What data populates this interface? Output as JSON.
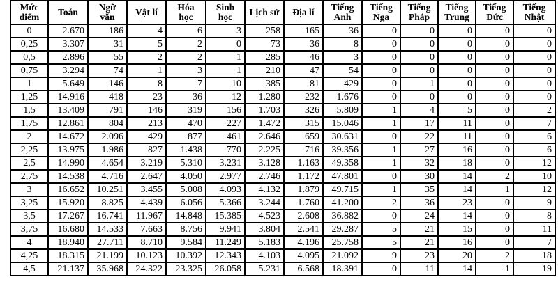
{
  "headers": [
    [
      "Mức",
      "điểm"
    ],
    [
      "Toán"
    ],
    [
      "Ngữ",
      "văn"
    ],
    [
      "Vật lí"
    ],
    [
      "Hóa",
      "học"
    ],
    [
      "Sinh",
      "học"
    ],
    [
      "Lịch sử"
    ],
    [
      "Địa lí"
    ],
    [
      "Tiếng",
      "Anh"
    ],
    [
      "Tiếng",
      "Nga"
    ],
    [
      "Tiếng",
      "Pháp"
    ],
    [
      "Tiếng",
      "Trung"
    ],
    [
      "Tiếng",
      "Đức"
    ],
    [
      "Tiếng",
      "Nhật"
    ]
  ],
  "rows": [
    [
      "0",
      "2.670",
      "186",
      "4",
      "6",
      "3",
      "258",
      "165",
      "36",
      "0",
      "0",
      "0",
      "0",
      "0"
    ],
    [
      "0,25",
      "3.307",
      "31",
      "5",
      "2",
      "0",
      "73",
      "36",
      "8",
      "0",
      "0",
      "0",
      "0",
      "0"
    ],
    [
      "0,5",
      "2.896",
      "55",
      "2",
      "2",
      "1",
      "285",
      "46",
      "3",
      "0",
      "0",
      "0",
      "0",
      "0"
    ],
    [
      "0,75",
      "3.294",
      "74",
      "1",
      "3",
      "1",
      "210",
      "47",
      "54",
      "0",
      "0",
      "0",
      "0",
      "0"
    ],
    [
      "1",
      "5.649",
      "146",
      "8",
      "7",
      "10",
      "385",
      "81",
      "429",
      "0",
      "1",
      "0",
      "0",
      "0"
    ],
    [
      "1,25",
      "14.916",
      "418",
      "23",
      "36",
      "12",
      "1.280",
      "232",
      "1.676",
      "0",
      "0",
      "0",
      "0",
      "0"
    ],
    [
      "1,5",
      "13.409",
      "791",
      "146",
      "319",
      "156",
      "1.703",
      "326",
      "5.809",
      "1",
      "4",
      "5",
      "0",
      "2"
    ],
    [
      "1,75",
      "12.861",
      "804",
      "213",
      "470",
      "227",
      "1.472",
      "315",
      "15.046",
      "1",
      "17",
      "11",
      "0",
      "7"
    ],
    [
      "2",
      "14.672",
      "2.096",
      "429",
      "877",
      "461",
      "2.646",
      "659",
      "30.631",
      "0",
      "22",
      "11",
      "0",
      "6"
    ],
    [
      "2,25",
      "13.975",
      "1.986",
      "827",
      "1.438",
      "770",
      "2.225",
      "716",
      "39.356",
      "1",
      "27",
      "16",
      "0",
      "6"
    ],
    [
      "2,5",
      "14.990",
      "4.654",
      "3.219",
      "5.310",
      "3.231",
      "3.128",
      "1.163",
      "49.358",
      "1",
      "32",
      "18",
      "0",
      "12"
    ],
    [
      "2,75",
      "14.538",
      "4.716",
      "2.647",
      "4.050",
      "2.977",
      "2.746",
      "1.172",
      "47.801",
      "0",
      "30",
      "14",
      "2",
      "10"
    ],
    [
      "3",
      "16.652",
      "10.251",
      "3.455",
      "5.008",
      "4.093",
      "4.132",
      "1.879",
      "49.715",
      "1",
      "35",
      "14",
      "1",
      "12"
    ],
    [
      "3,25",
      "15.920",
      "8.825",
      "4.439",
      "6.056",
      "5.366",
      "3.244",
      "1.760",
      "41.200",
      "2",
      "36",
      "23",
      "0",
      "9"
    ],
    [
      "3,5",
      "17.267",
      "16.741",
      "11.967",
      "14.848",
      "15.385",
      "4.523",
      "2.608",
      "36.882",
      "0",
      "24",
      "14",
      "0",
      "8"
    ],
    [
      "3,75",
      "16.680",
      "14.533",
      "7.663",
      "8.756",
      "9.941",
      "3.804",
      "2.541",
      "29.287",
      "5",
      "21",
      "15",
      "0",
      "11"
    ],
    [
      "4",
      "18.940",
      "27.711",
      "8.710",
      "9.584",
      "11.249",
      "5.183",
      "4.196",
      "25.758",
      "5",
      "21",
      "16",
      "0",
      "7"
    ],
    [
      "4,25",
      "18.315",
      "21.199",
      "10.123",
      "10.392",
      "12.343",
      "4.103",
      "4.095",
      "21.092",
      "9",
      "23",
      "20",
      "2",
      "18"
    ],
    [
      "4,5",
      "21.137",
      "35.968",
      "24.322",
      "23.325",
      "26.058",
      "5.231",
      "6.568",
      "18.391",
      "0",
      "11",
      "14",
      "1",
      "19"
    ]
  ]
}
